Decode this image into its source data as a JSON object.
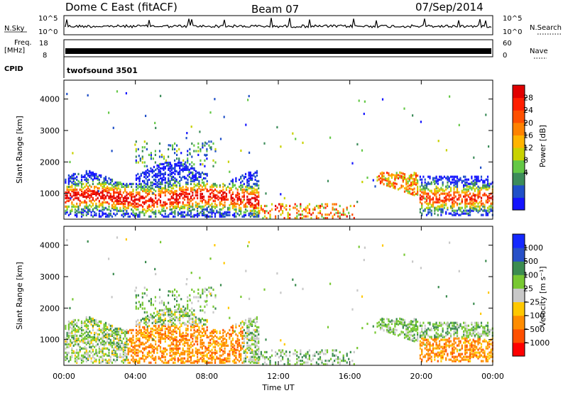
{
  "header": {
    "site": "Dome C East (fitACF)",
    "beam": "Beam 07",
    "date": "07/Sep/2014"
  },
  "strip_panels": {
    "nsky": {
      "label": "N.Sky",
      "ticks": [
        "10^5",
        "10^0"
      ],
      "right_label": "N.Search",
      "right_ticks": [
        "10^5",
        "10^0"
      ]
    },
    "freq": {
      "label_line1": "Freq.",
      "label_line2": "[MHz]",
      "ticks": [
        "18",
        "8"
      ],
      "right_label": "Nave",
      "right_ticks": [
        "60",
        "0"
      ]
    },
    "cpid": {
      "label": "CPID",
      "value": "twofsound 3501"
    }
  },
  "chart_data": [
    {
      "type": "heatmap",
      "panel": "power",
      "ylabel": "Slant Range [km]",
      "xlabel": "",
      "ylim": [
        180,
        4600
      ],
      "xlim": [
        0,
        24
      ],
      "yticks": [
        "1000",
        "2000",
        "3000",
        "4000"
      ],
      "colorbar": {
        "title": "Power [dB]",
        "ticks": [
          "28",
          "24",
          "20",
          "16",
          "12",
          "8",
          "4"
        ],
        "colors": [
          "#1414ff",
          "#2050c8",
          "#3c8c5a",
          "#64c846",
          "#c8d200",
          "#ffb400",
          "#ff8200",
          "#ff5000",
          "#ff1e00",
          "#e00000"
        ]
      },
      "regions": [
        {
          "t0": 0.0,
          "t1": 10.9,
          "r0": 300,
          "r1": 1900,
          "level": "mixed"
        },
        {
          "t0": 4.0,
          "t1": 8.0,
          "r0": 1900,
          "r1": 2700,
          "level": "low"
        },
        {
          "t0": 17.5,
          "t1": 19.8,
          "r0": 900,
          "r1": 1750,
          "level": "mixed"
        },
        {
          "t0": 19.8,
          "t1": 24.0,
          "r0": 300,
          "r1": 1600,
          "level": "mixed"
        }
      ]
    },
    {
      "type": "heatmap",
      "panel": "velocity",
      "ylabel": "Slant Range [km]",
      "xlabel": "Time UT",
      "ylim": [
        180,
        4600
      ],
      "xlim": [
        0,
        24
      ],
      "yticks": [
        "1000",
        "2000",
        "3000",
        "4000"
      ],
      "xticks": [
        "00:00",
        "04:00",
        "08:00",
        "12:00",
        "16:00",
        "20:00",
        "00:00"
      ],
      "colorbar": {
        "title": "Velocity [m s⁻¹]",
        "ticks": [
          "1000",
          "500",
          "100",
          "25",
          "−25",
          "−100",
          "−500",
          "−1000"
        ],
        "colors": [
          "#ff0000",
          "#ff5000",
          "#ff8c00",
          "#ffc800",
          "#c8c8c8",
          "#78c832",
          "#3c8c50",
          "#2850c8",
          "#1428ff"
        ]
      }
    }
  ]
}
